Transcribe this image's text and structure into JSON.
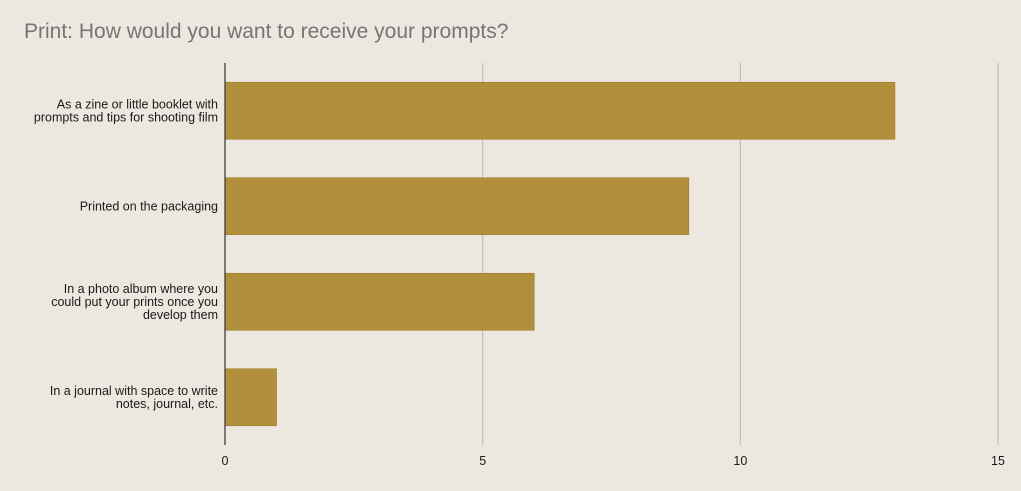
{
  "chart_data": {
    "type": "bar",
    "orientation": "horizontal",
    "title": "Print: How would you want to receive your prompts?",
    "categories": [
      [
        "As a zine or little booklet with",
        "prompts and tips for shooting film"
      ],
      [
        "Printed on the packaging"
      ],
      [
        "In a photo album where you",
        "could put your prints once you",
        "develop them"
      ],
      [
        "In a journal with space to write",
        "notes, journal, etc."
      ]
    ],
    "values": [
      13,
      9,
      6,
      1
    ],
    "xlim": [
      0,
      15
    ],
    "xticks": [
      0,
      5,
      10,
      15
    ],
    "grid": true,
    "bar_color": "#b28f3a",
    "xlabel": "",
    "ylabel": ""
  }
}
